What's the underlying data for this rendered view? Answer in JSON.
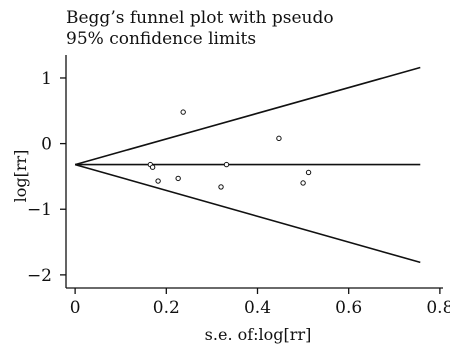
{
  "chart_data": {
    "type": "scatter",
    "title": [
      "Begg’s funnel plot with pseudo",
      "95% confidence limits"
    ],
    "xlabel": "s.e. of:log[rr]",
    "ylabel": "log[rr]",
    "xlim": [
      -0.02,
      0.82
    ],
    "ylim": [
      -2.2,
      1.35
    ],
    "x_ticks": [
      0,
      0.2,
      0.4,
      0.6,
      0.8
    ],
    "x_tick_labels": [
      "0",
      "0.2",
      "0.4",
      "0.6",
      "0.8"
    ],
    "y_ticks": [
      1,
      0,
      -1,
      -2
    ],
    "y_tick_labels": [
      "1",
      "0",
      "−1",
      "−2"
    ],
    "pooled_estimate": -0.32,
    "confidence_limits": {
      "upper": [
        [
          0,
          -0.32
        ],
        [
          0.757,
          1.16
        ]
      ],
      "lower": [
        [
          0,
          -0.32
        ],
        [
          0.757,
          -1.81
        ]
      ]
    },
    "points": [
      {
        "x": 0.165,
        "y": -0.32
      },
      {
        "x": 0.17,
        "y": -0.36
      },
      {
        "x": 0.182,
        "y": -0.57
      },
      {
        "x": 0.226,
        "y": -0.53
      },
      {
        "x": 0.237,
        "y": 0.48
      },
      {
        "x": 0.32,
        "y": -0.66
      },
      {
        "x": 0.332,
        "y": -0.32
      },
      {
        "x": 0.447,
        "y": 0.08
      },
      {
        "x": 0.5,
        "y": -0.6
      },
      {
        "x": 0.512,
        "y": -0.44
      }
    ]
  }
}
